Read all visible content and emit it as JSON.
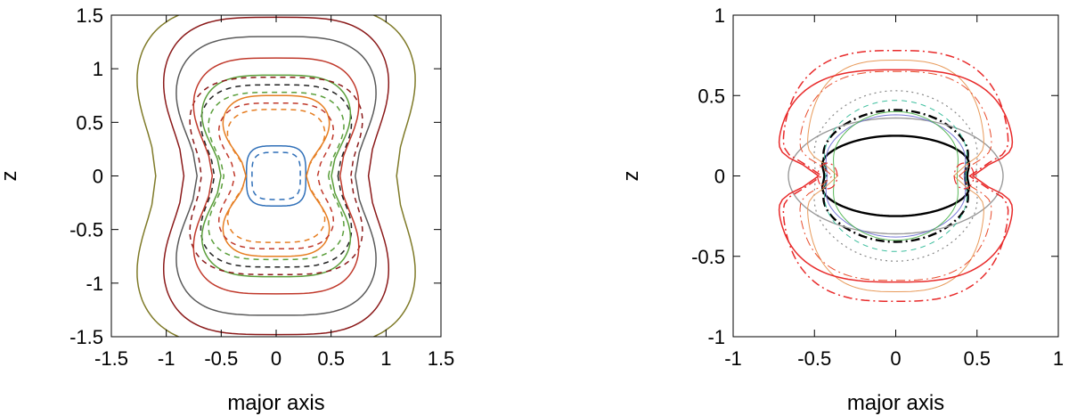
{
  "chart_data": [
    {
      "type": "line",
      "subtype": "contour",
      "title": "",
      "xlabel": "major axis",
      "ylabel": "z",
      "xlim": [
        -1.5,
        1.5
      ],
      "ylim": [
        -1.5,
        1.5
      ],
      "xticks": [
        "-1.5",
        "-1",
        "-0.5",
        "0",
        "0.5",
        "1",
        "1.5"
      ],
      "yticks": [
        "-1.5",
        "-1",
        "-0.5",
        "0",
        "0.5",
        "1",
        "1.5"
      ],
      "grid": false,
      "series": [
        {
          "color": "#2f6fb8",
          "dash": "solid",
          "shape": "box",
          "a": 0.27,
          "b": 0.28,
          "waist": 0.0
        },
        {
          "color": "#2f6fb8",
          "dash": "dashed",
          "shape": "box",
          "a": 0.22,
          "b": 0.22,
          "waist": 0.0
        },
        {
          "color": "#e67e22",
          "dash": "solid",
          "shape": "box",
          "a": 0.55,
          "b": 0.75,
          "waist": 0.5
        },
        {
          "color": "#e67e22",
          "dash": "dashed",
          "shape": "box",
          "a": 0.5,
          "b": 0.62,
          "waist": 0.45
        },
        {
          "color": "#c0392b",
          "dash": "dashed",
          "shape": "box",
          "a": 0.58,
          "b": 0.68,
          "waist": 0.35
        },
        {
          "color": "#5a9e3a",
          "dash": "dashed",
          "shape": "box",
          "a": 0.68,
          "b": 0.78,
          "waist": 0.3
        },
        {
          "color": "#222222",
          "dash": "dashed",
          "shape": "box",
          "a": 0.75,
          "b": 0.85,
          "waist": 0.25
        },
        {
          "color": "#5a9e3a",
          "dash": "solid",
          "shape": "box",
          "a": 0.75,
          "b": 0.94,
          "waist": 0.33
        },
        {
          "color": "#8b1a1a",
          "dash": "dashed",
          "shape": "box",
          "a": 0.85,
          "b": 0.92,
          "waist": 0.2
        },
        {
          "color": "#c0392b",
          "dash": "solid",
          "shape": "box",
          "a": 0.83,
          "b": 1.1,
          "waist": 0.3
        },
        {
          "color": "#5a5a5a",
          "dash": "solid",
          "shape": "box",
          "a": 1.0,
          "b": 1.3,
          "waist": 0.28
        },
        {
          "color": "#8b1a1a",
          "dash": "solid",
          "shape": "box",
          "a": 1.12,
          "b": 1.48,
          "waist": 0.25
        },
        {
          "color": "#7f7a28",
          "dash": "solid",
          "shape": "box",
          "a": 1.37,
          "b": 1.6,
          "waist": 0.2
        }
      ]
    },
    {
      "type": "line",
      "subtype": "contour",
      "title": "",
      "xlabel": "major axis",
      "ylabel": "z",
      "xlim": [
        -1,
        1
      ],
      "ylim": [
        -1,
        1
      ],
      "xticks": [
        "-1",
        "-0.5",
        "0",
        "0.5",
        "1"
      ],
      "yticks": [
        "-1",
        "-0.5",
        "0",
        "0.5",
        "1"
      ],
      "grid": false,
      "series": [
        {
          "color": "#000000",
          "dash": "solid",
          "width": 2.4,
          "shape": "ellipse",
          "a": 0.5,
          "b": 0.25,
          "waist": 0.12
        },
        {
          "color": "#000000",
          "dash": "dashdot",
          "width": 2.4,
          "shape": "ellipse",
          "a": 0.5,
          "b": 0.41,
          "waist": 0.15
        },
        {
          "color": "#9a9a9a",
          "dash": "solid",
          "width": 1.4,
          "shape": "ellipse",
          "a": 0.66,
          "b": 0.36,
          "waist": 0.0
        },
        {
          "color": "#7b7bd8",
          "dash": "solid",
          "width": 1.0,
          "shape": "ellipse",
          "a": 0.47,
          "b": 0.38,
          "waist": 0.1
        },
        {
          "color": "#3fbf9f",
          "dash": "dashed",
          "width": 1.0,
          "shape": "ellipse",
          "a": 0.48,
          "b": 0.47,
          "waist": 0.1
        },
        {
          "color": "#5ab85a",
          "dash": "solid",
          "width": 1.0,
          "shape": "ellipse",
          "a": 0.42,
          "b": 0.4,
          "waist": 0.1
        },
        {
          "color": "#888888",
          "dash": "dotted",
          "width": 1.2,
          "shape": "ellipse",
          "a": 0.55,
          "b": 0.53,
          "waist": 0.1
        },
        {
          "color": "#e89a5a",
          "dash": "solid",
          "width": 1.0,
          "shape": "octagon",
          "a": 0.55,
          "b": 0.72,
          "waist": 0.0
        },
        {
          "color": "#e84a2a",
          "dash": "dashdot",
          "width": 1.0,
          "shape": "octagon",
          "a": 0.6,
          "b": 0.65,
          "waist": 0.0
        },
        {
          "color": "#e82a2a",
          "dash": "solid",
          "width": 1.5,
          "shape": "octagon",
          "a": 0.73,
          "b": 0.66,
          "waist": 0.0
        },
        {
          "color": "#e82a2a",
          "dash": "dashdot",
          "width": 1.5,
          "shape": "octagon",
          "a": 0.7,
          "b": 0.78,
          "waist": 0.0
        },
        {
          "color": "#e82a2a",
          "dash": "dashdot",
          "width": 1.2,
          "shape": "lobe-left",
          "a": 0.42,
          "b": 0.08,
          "waist": 0.0
        },
        {
          "color": "#e82a2a",
          "dash": "dashdot",
          "width": 1.2,
          "shape": "lobe-right",
          "a": 0.42,
          "b": 0.08,
          "waist": 0.0
        }
      ]
    }
  ]
}
